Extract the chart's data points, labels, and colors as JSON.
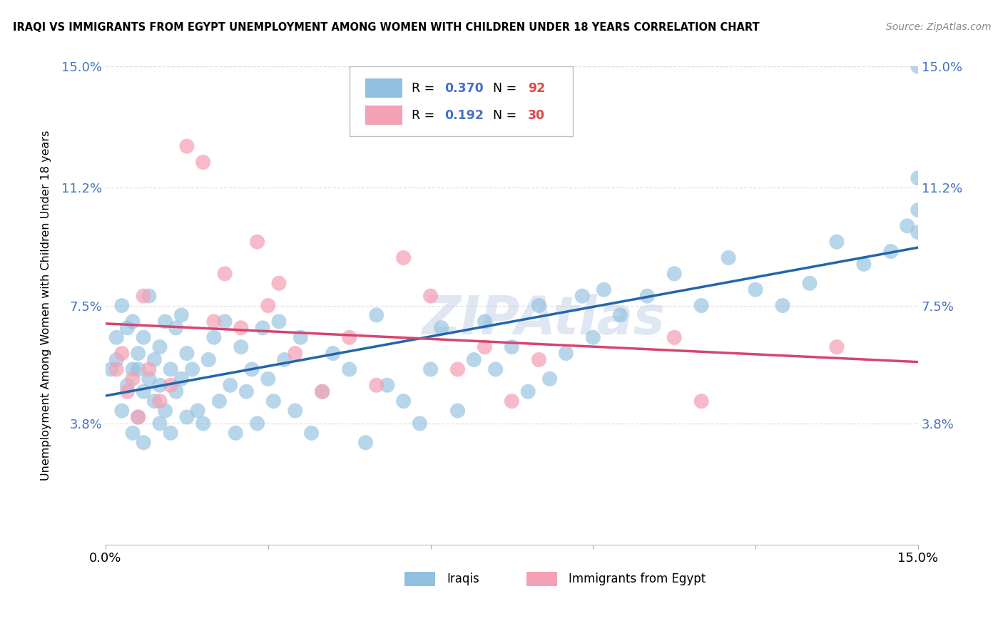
{
  "title": "IRAQI VS IMMIGRANTS FROM EGYPT UNEMPLOYMENT AMONG WOMEN WITH CHILDREN UNDER 18 YEARS CORRELATION CHART",
  "source": "Source: ZipAtlas.com",
  "ylabel_label": "Unemployment Among Women with Children Under 18 years",
  "xmin": 0.0,
  "xmax": 15.0,
  "ymin": 0.0,
  "ymax": 15.0,
  "ytick_vals": [
    3.8,
    7.5,
    11.2,
    15.0
  ],
  "xtick_positions": [
    0,
    3,
    6,
    9,
    12,
    15
  ],
  "iraqis_R": 0.37,
  "iraqis_N": 92,
  "egypt_R": 0.192,
  "egypt_N": 30,
  "iraqis_color": "#92c0e0",
  "egypt_color": "#f4a0b5",
  "iraqis_line_color": "#2166ac",
  "egypt_line_color": "#d6456e",
  "watermark_text": "ZIPAtlas",
  "watermark_color": "#c8d5e8",
  "background_color": "#ffffff",
  "grid_color": "#e0e0e0",
  "axis_tick_color_y": "#4472c4",
  "R_color": "#4472c4",
  "N_color": "#e04444",
  "bottom_legend_iraqis": "Iraqis",
  "bottom_legend_egypt": "Immigrants from Egypt",
  "iraqis_x": [
    0.1,
    0.2,
    0.2,
    0.3,
    0.3,
    0.4,
    0.4,
    0.5,
    0.5,
    0.5,
    0.6,
    0.6,
    0.6,
    0.7,
    0.7,
    0.7,
    0.8,
    0.8,
    0.9,
    0.9,
    1.0,
    1.0,
    1.0,
    1.1,
    1.1,
    1.2,
    1.2,
    1.3,
    1.3,
    1.4,
    1.4,
    1.5,
    1.5,
    1.6,
    1.7,
    1.8,
    1.9,
    2.0,
    2.1,
    2.2,
    2.3,
    2.4,
    2.5,
    2.6,
    2.7,
    2.8,
    2.9,
    3.0,
    3.1,
    3.2,
    3.3,
    3.5,
    3.6,
    3.8,
    4.0,
    4.2,
    4.5,
    4.8,
    5.0,
    5.2,
    5.5,
    5.8,
    6.0,
    6.2,
    6.5,
    6.8,
    7.0,
    7.2,
    7.5,
    7.8,
    8.0,
    8.2,
    8.5,
    8.8,
    9.0,
    9.2,
    9.5,
    10.0,
    10.5,
    11.0,
    11.5,
    12.0,
    12.5,
    13.0,
    13.5,
    14.0,
    14.5,
    14.8,
    15.0,
    15.0,
    15.0,
    15.0
  ],
  "iraqis_y": [
    5.5,
    6.5,
    5.8,
    4.2,
    7.5,
    5.0,
    6.8,
    3.5,
    5.5,
    7.0,
    4.0,
    5.5,
    6.0,
    4.8,
    3.2,
    6.5,
    5.2,
    7.8,
    4.5,
    5.8,
    3.8,
    5.0,
    6.2,
    4.2,
    7.0,
    5.5,
    3.5,
    6.8,
    4.8,
    5.2,
    7.2,
    4.0,
    6.0,
    5.5,
    4.2,
    3.8,
    5.8,
    6.5,
    4.5,
    7.0,
    5.0,
    3.5,
    6.2,
    4.8,
    5.5,
    3.8,
    6.8,
    5.2,
    4.5,
    7.0,
    5.8,
    4.2,
    6.5,
    3.5,
    4.8,
    6.0,
    5.5,
    3.2,
    7.2,
    5.0,
    4.5,
    3.8,
    5.5,
    6.8,
    4.2,
    5.8,
    7.0,
    5.5,
    6.2,
    4.8,
    7.5,
    5.2,
    6.0,
    7.8,
    6.5,
    8.0,
    7.2,
    7.8,
    8.5,
    7.5,
    9.0,
    8.0,
    7.5,
    8.2,
    9.5,
    8.8,
    9.2,
    10.0,
    10.5,
    11.5,
    9.8,
    15.0
  ],
  "egypt_x": [
    0.2,
    0.3,
    0.4,
    0.5,
    0.6,
    0.7,
    0.8,
    1.0,
    1.2,
    1.5,
    1.8,
    2.0,
    2.2,
    2.5,
    2.8,
    3.0,
    3.2,
    3.5,
    4.0,
    4.5,
    5.0,
    5.5,
    6.0,
    6.5,
    7.0,
    7.5,
    8.0,
    10.5,
    11.0,
    13.5
  ],
  "egypt_y": [
    5.5,
    6.0,
    4.8,
    5.2,
    4.0,
    7.8,
    5.5,
    4.5,
    5.0,
    12.5,
    12.0,
    7.0,
    8.5,
    6.8,
    9.5,
    7.5,
    8.2,
    6.0,
    4.8,
    6.5,
    5.0,
    9.0,
    7.8,
    5.5,
    6.2,
    4.5,
    5.8,
    6.5,
    4.5,
    6.2
  ]
}
